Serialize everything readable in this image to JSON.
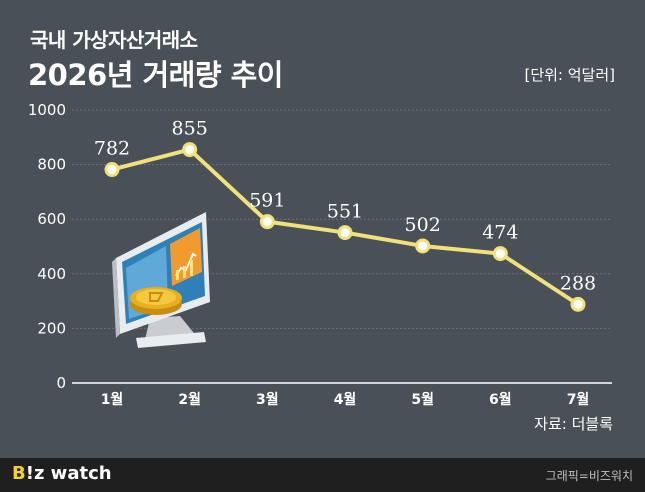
{
  "chart_data": {
    "type": "line",
    "title": "2026년 거래량 추이",
    "subtitle": "국내 가상자산거래소",
    "unit": "[단위: 억달러]",
    "source": "자료: 더블록",
    "categories": [
      "1월",
      "2월",
      "3월",
      "4월",
      "5월",
      "6월",
      "7월"
    ],
    "values": [
      782,
      855,
      591,
      551,
      502,
      474,
      288
    ],
    "data_labels": [
      "782",
      "855",
      "591",
      "551",
      "502",
      "474",
      "288"
    ],
    "ylim": [
      0,
      1000
    ],
    "yticks": [
      "0",
      "200",
      "400",
      "600",
      "800",
      "1000"
    ],
    "grid": true,
    "line_color": "#f2e07a",
    "marker_fill": "#ffffff"
  },
  "colors": {
    "background": "#4a5058",
    "text": "#ffffff",
    "grid": "#6c7279",
    "footer_bg": "#1f1f1f",
    "brand_accent": "#f5d22e"
  },
  "illustration": {
    "icon": "computer-monitor-with-coin-icon"
  },
  "footer": {
    "brand_accent": "B",
    "brand_text": "!z watch",
    "credit": "그래픽=비즈워치"
  }
}
